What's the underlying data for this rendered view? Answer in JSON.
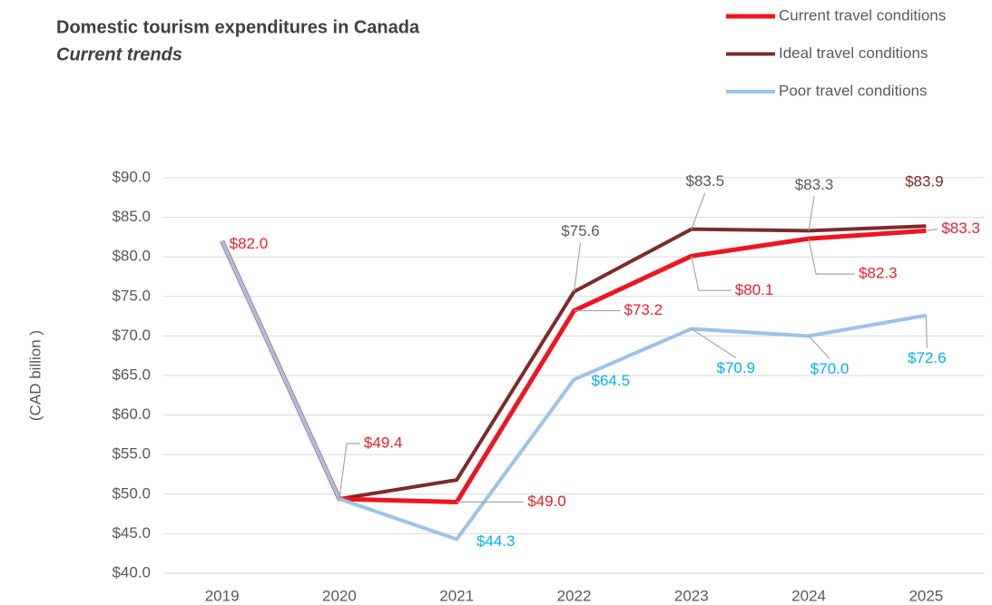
{
  "chart_data": {
    "type": "line",
    "title": "Domestic tourism expenditures in Canada",
    "subtitle": "Current trends",
    "y_label": "(CAD billion )",
    "categories": [
      "2019",
      "2020",
      "2021",
      "2022",
      "2023",
      "2024",
      "2025"
    ],
    "series": [
      {
        "name": "Current travel conditions",
        "color": "#f0141e",
        "label_color": "#e8202a",
        "values": [
          82.0,
          49.4,
          49.0,
          73.2,
          80.1,
          82.3,
          83.3
        ],
        "value_labels": [
          "$82.0",
          "$49.4",
          "$49.0",
          "$73.2",
          "$80.1",
          "$82.3",
          "$83.3"
        ]
      },
      {
        "name": "Ideal travel conditions",
        "color": "#7b2c2a",
        "label_color": "#595959",
        "values": [
          82.0,
          49.4,
          51.8,
          75.6,
          83.5,
          83.3,
          83.9
        ],
        "value_labels": [
          null,
          null,
          null,
          "$75.6",
          "$83.5",
          "$83.3",
          "$83.9"
        ]
      },
      {
        "name": "Poor travel conditions",
        "color": "#9dc3e6",
        "label_color": "#00b0f0",
        "values": [
          82.0,
          49.4,
          44.3,
          64.5,
          70.9,
          70.0,
          72.6
        ],
        "value_labels": [
          null,
          null,
          "$44.3",
          "$64.5",
          "$70.9",
          "$70.0",
          "$72.6"
        ]
      }
    ],
    "ylim": [
      40,
      90
    ],
    "yticks": [
      {
        "value": 40,
        "label": "$40.0"
      },
      {
        "value": 45,
        "label": "$45.0"
      },
      {
        "value": 50,
        "label": "$50.0"
      },
      {
        "value": 55,
        "label": "$55.0"
      },
      {
        "value": 60,
        "label": "$60.0"
      },
      {
        "value": 65,
        "label": "$65.0"
      },
      {
        "value": 70,
        "label": "$70.0"
      },
      {
        "value": 75,
        "label": "$75.0"
      },
      {
        "value": 80,
        "label": "$80.0"
      },
      {
        "value": 85,
        "label": "$85.0"
      },
      {
        "value": 90,
        "label": "$90.0"
      }
    ],
    "grid": true,
    "legend": "top-right"
  }
}
